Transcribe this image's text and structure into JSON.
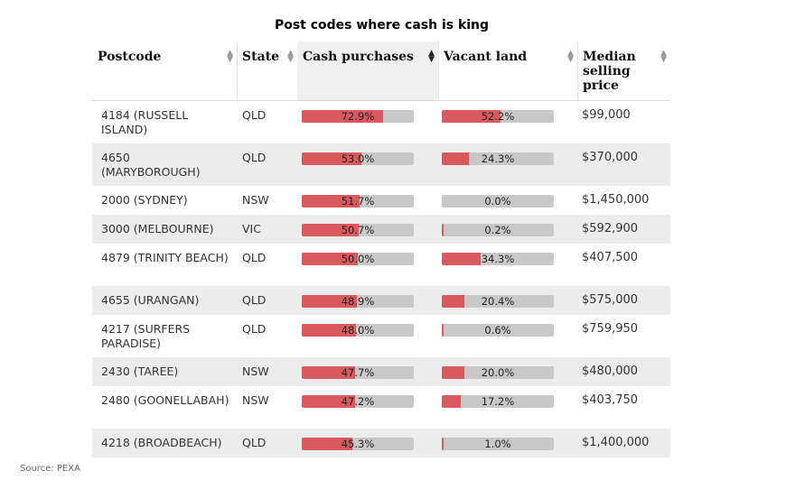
{
  "chart_data": {
    "type": "table",
    "title": "Post codes where cash is king",
    "source": "Source: PEXA",
    "columns": [
      {
        "key": "postcode",
        "label": "Postcode",
        "sorted": false
      },
      {
        "key": "state",
        "label": "State",
        "sorted": false
      },
      {
        "key": "cash",
        "label": "Cash purchases",
        "sorted": true
      },
      {
        "key": "land",
        "label": "Vacant land",
        "sorted": false
      },
      {
        "key": "price",
        "label": "Median selling price",
        "sorted": false
      }
    ],
    "rows": [
      {
        "postcode": "4184 (RUSSELL ISLAND)",
        "state": "QLD",
        "cash": 72.9,
        "cash_label": "72.9%",
        "land": 52.2,
        "land_label": "52.2%",
        "price": "$99,000"
      },
      {
        "postcode": "4650 (MARYBOROUGH)",
        "state": "QLD",
        "cash": 53.0,
        "cash_label": "53.0%",
        "land": 24.3,
        "land_label": "24.3%",
        "price": "$370,000"
      },
      {
        "postcode": "2000 (SYDNEY)",
        "state": "NSW",
        "cash": 51.7,
        "cash_label": "51.7%",
        "land": 0.0,
        "land_label": "0.0%",
        "price": "$1,450,000"
      },
      {
        "postcode": "3000 (MELBOURNE)",
        "state": "VIC",
        "cash": 50.7,
        "cash_label": "50.7%",
        "land": 0.2,
        "land_label": "0.2%",
        "price": "$592,900"
      },
      {
        "postcode": "4879 (TRINITY BEACH)",
        "state": "QLD",
        "cash": 50.0,
        "cash_label": "50.0%",
        "land": 34.3,
        "land_label": "34.3%",
        "price": "$407,500"
      },
      {
        "postcode": "4655 (URANGAN)",
        "state": "QLD",
        "cash": 48.9,
        "cash_label": "48.9%",
        "land": 20.4,
        "land_label": "20.4%",
        "price": "$575,000"
      },
      {
        "postcode": "4217 (SURFERS PARADISE)",
        "state": "QLD",
        "cash": 48.0,
        "cash_label": "48.0%",
        "land": 0.6,
        "land_label": "0.6%",
        "price": "$759,950"
      },
      {
        "postcode": "2430 (TAREE)",
        "state": "NSW",
        "cash": 47.7,
        "cash_label": "47.7%",
        "land": 20.0,
        "land_label": "20.0%",
        "price": "$480,000"
      },
      {
        "postcode": "2480 (GOONELLABAH)",
        "state": "NSW",
        "cash": 47.2,
        "cash_label": "47.2%",
        "land": 17.2,
        "land_label": "17.2%",
        "price": "$403,750"
      },
      {
        "postcode": "4218 (BROADBEACH)",
        "state": "QLD",
        "cash": 45.3,
        "cash_label": "45.3%",
        "land": 1.0,
        "land_label": "1.0%",
        "price": "$1,400,000"
      }
    ],
    "colors": {
      "bar_fill": "#d95a5e",
      "bar_track": "#c8c8c8",
      "alt_row": "#ececec"
    }
  }
}
